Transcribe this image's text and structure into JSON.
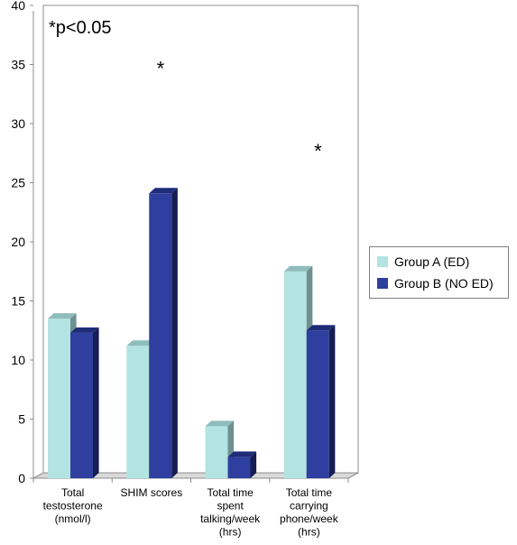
{
  "chart_data": {
    "type": "bar",
    "categories": [
      [
        "Total",
        "testosterone",
        "(nmol/l)"
      ],
      [
        "SHIM scores"
      ],
      [
        "Total time",
        "spent",
        "talking/week",
        "(hrs)"
      ],
      [
        "Total time",
        "carrying",
        "phone/week",
        "(hrs)"
      ]
    ],
    "series": [
      {
        "name": "Group A (ED)",
        "values": [
          13.5,
          11.2,
          4.4,
          17.5
        ],
        "color": "#b3e3e3",
        "top_color": "#8fbcbc",
        "side_color": "#6e9090"
      },
      {
        "name": "Group B (NO ED)",
        "values": [
          12.3,
          24.1,
          1.8,
          12.5
        ],
        "color": "#2f3f9f",
        "top_color": "#1f2c78",
        "side_color": "#151d52"
      }
    ],
    "ylim": [
      0,
      40
    ],
    "yticks": [
      0,
      5,
      10,
      15,
      20,
      25,
      30,
      35,
      40
    ],
    "annotations": [
      {
        "text": "*p<0.05",
        "kind": "note"
      },
      {
        "text": "*",
        "category_index": 1,
        "at_value": 35
      },
      {
        "text": "*",
        "category_index": 3,
        "at_value": 28
      }
    ],
    "legend_position": "right",
    "grid": false
  }
}
